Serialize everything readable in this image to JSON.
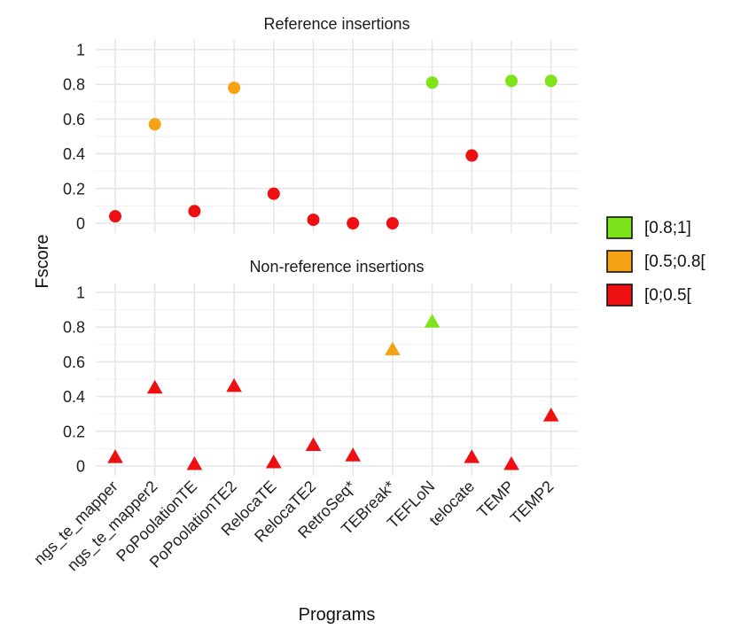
{
  "chart_data": {
    "type": "scatter",
    "xlabel": "Programs",
    "ylabel": "Fscore",
    "categories": [
      "ngs_te_mapper",
      "ngs_te_mapper2",
      "PoPoolationTE",
      "PoPoolationTE2",
      "RelocaTE",
      "RelocaTE2",
      "RetroSeq*",
      "TEBreak*",
      "TEFLoN",
      "telocate",
      "TEMP",
      "TEMP2"
    ],
    "ylim": [
      0,
      1
    ],
    "yticks": [
      "0",
      "0.2",
      "0.4",
      "0.6",
      "0.8",
      "1"
    ],
    "grid": true,
    "legend_position": "right",
    "legend": [
      {
        "label": "[0.8;1]",
        "color": "#7FE31C"
      },
      {
        "label": "[0.5;0.8[",
        "color": "#F5A216"
      },
      {
        "label": "[0;0.5[",
        "color": "#EE0F13"
      }
    ],
    "panels": [
      {
        "title": "Reference insertions",
        "marker": "circle",
        "values": [
          0.04,
          0.57,
          0.07,
          0.78,
          0.17,
          0.02,
          0.0,
          0.0,
          0.81,
          0.39,
          0.82,
          0.82
        ]
      },
      {
        "title": "Non-reference insertions",
        "marker": "triangle",
        "values": [
          0.05,
          0.45,
          0.01,
          0.46,
          0.02,
          0.12,
          0.06,
          0.67,
          0.83,
          0.05,
          0.01,
          0.29
        ]
      }
    ]
  }
}
